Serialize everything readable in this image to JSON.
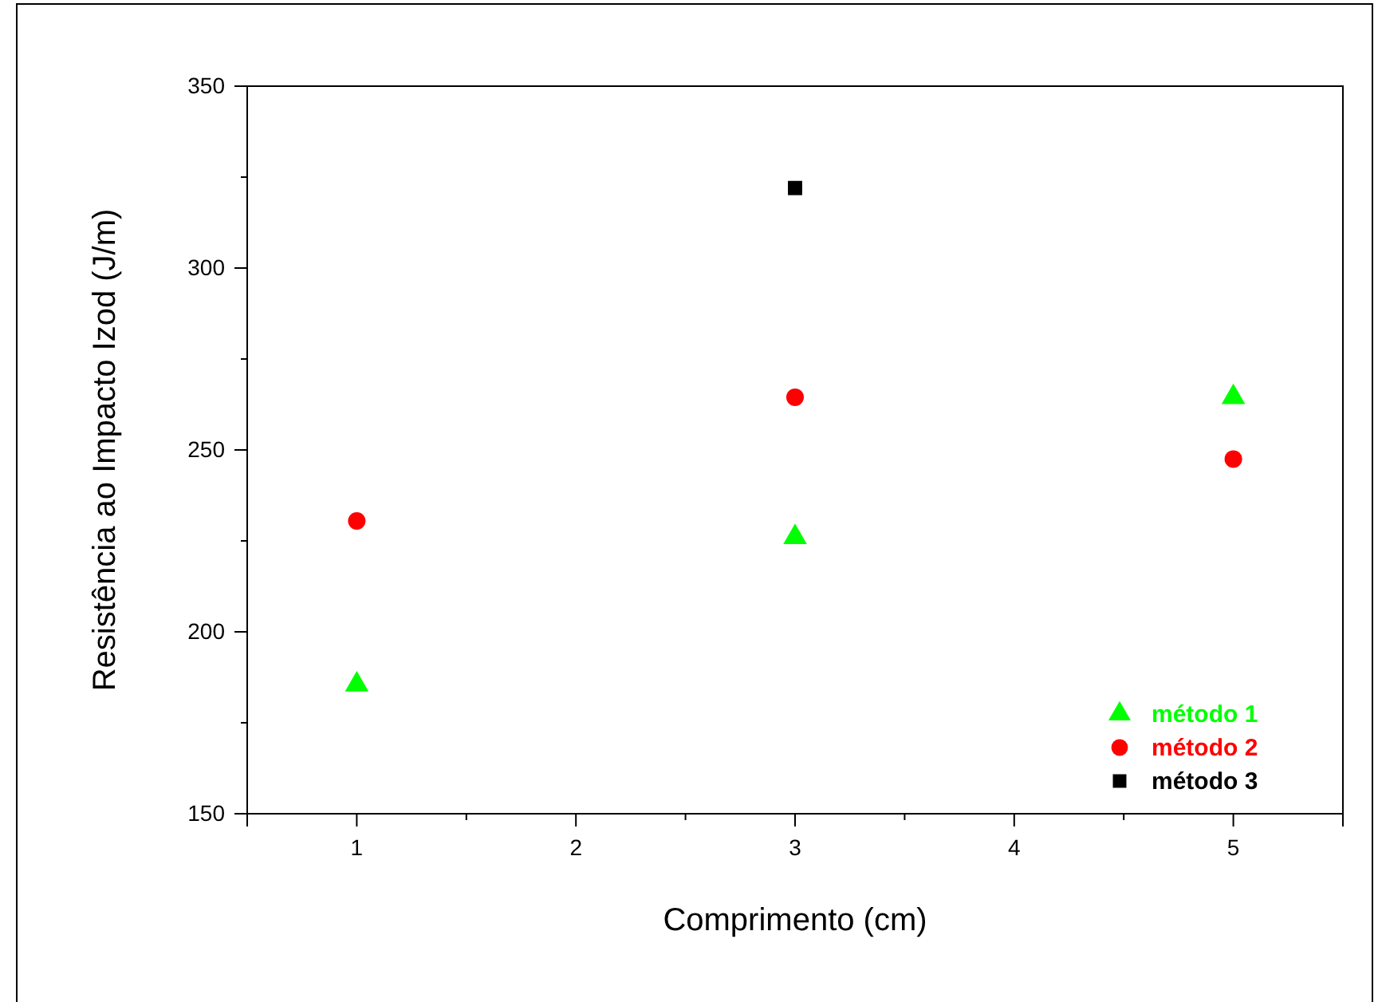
{
  "chart_data": {
    "type": "scatter",
    "xlabel": "Comprimento (cm)",
    "ylabel": "Resistência ao Impacto Izod (J/m)",
    "xlim": [
      0.5,
      5.5
    ],
    "xticks": [
      1,
      2,
      3,
      4,
      5
    ],
    "ylim": [
      150,
      350
    ],
    "yticks": [
      150,
      200,
      250,
      300,
      350
    ],
    "grid": false,
    "legend": "bottom right",
    "series": [
      {
        "name": "método 1",
        "color": "#00ff00",
        "marker": "triangle",
        "x": [
          1,
          3,
          5
        ],
        "values": [
          185.5,
          226,
          264.5
        ]
      },
      {
        "name": "método 2",
        "color": "#ff0000",
        "marker": "circle",
        "x": [
          1,
          3,
          5
        ],
        "values": [
          230.5,
          264.5,
          247.5
        ]
      },
      {
        "name": "método 3",
        "color": "#000000",
        "marker": "square",
        "x": [
          3
        ],
        "values": [
          322
        ]
      }
    ]
  }
}
